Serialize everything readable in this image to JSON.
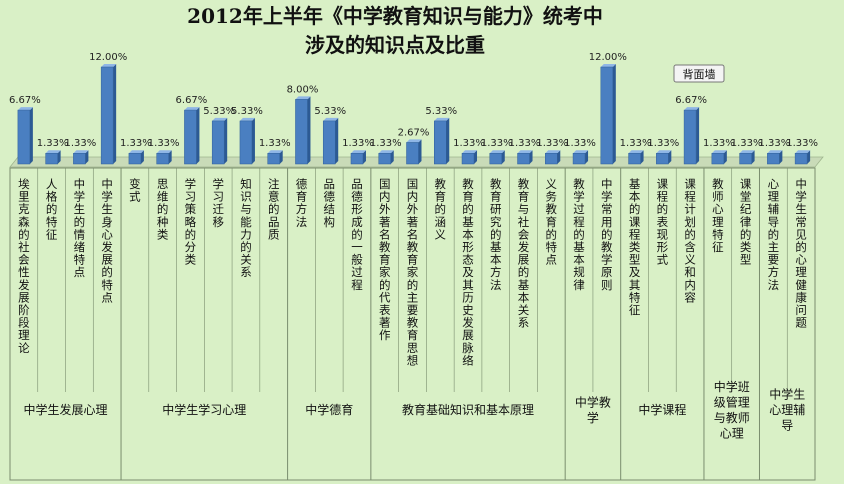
{
  "chart_data": {
    "type": "bar",
    "title_line1": "2012年上半年《中学教育知识与能力》统考中",
    "title_line2": "涉及的知识点及比重",
    "categories": [
      "埃里克森的社会性发展阶段理论",
      "人格的特征",
      "中学生的情绪特点",
      "中学生身心发展的特点",
      "变式",
      "思维的种类",
      "学习策略的分类",
      "学习迁移",
      "知识与能力的关系",
      "注意的品质",
      "德育方法",
      "品德结构",
      "品德形成的一般过程",
      "国内外著名教育家的代表著作",
      "国内外著名教育家的主要教育思想",
      "教育的涵义",
      "教育的基本形态及其历史发展脉络",
      "教育研究的基本方法",
      "教育与社会发展的基本关系",
      "义务教育的特点",
      "教学过程的基本规律",
      "中学常用的教学原则",
      "基本的课程类型及其特征",
      "课程的表现形式",
      "课程计划的含义和内容",
      "教师心理特征",
      "课堂纪律的类型",
      "心理辅导的主要方法",
      "中学生常见的心理健康问题"
    ],
    "values": [
      6.67,
      1.33,
      1.33,
      12.0,
      1.33,
      1.33,
      6.67,
      5.33,
      5.33,
      1.33,
      8.0,
      5.33,
      1.33,
      1.33,
      2.67,
      5.33,
      1.33,
      1.33,
      1.33,
      1.33,
      1.33,
      12.0,
      1.33,
      1.33,
      6.67,
      1.33,
      1.33,
      1.33,
      1.33
    ],
    "value_labels": [
      "6.67%",
      "1.33%",
      "1.33%",
      "12.00%",
      "1.33%",
      "1.33%",
      "6.67%",
      "5.33%",
      "5.33%",
      "1.33%",
      "8.00%",
      "5.33%",
      "1.33%",
      "1.33%",
      "2.67%",
      "5.33%",
      "1.33%",
      "1.33%",
      "1.33%",
      "1.33%",
      "1.33%",
      "12.00%",
      "1.33%",
      "1.33%",
      "6.67%",
      "1.33%",
      "1.33%",
      "1.33%",
      "1.33%"
    ],
    "groups": [
      {
        "lines": [
          "中学生发展心理"
        ],
        "start": 0,
        "count": 4
      },
      {
        "lines": [
          "中学生学习心理"
        ],
        "start": 4,
        "count": 6
      },
      {
        "lines": [
          "中学德育"
        ],
        "start": 10,
        "count": 3
      },
      {
        "lines": [
          "教育基础知识和基本原理"
        ],
        "start": 13,
        "count": 7
      },
      {
        "lines": [
          "中学教",
          "学"
        ],
        "start": 20,
        "count": 2
      },
      {
        "lines": [
          "中学课程"
        ],
        "start": 22,
        "count": 3
      },
      {
        "lines": [
          "中学班",
          "级管理",
          "与教师",
          "心理"
        ],
        "start": 25,
        "count": 2
      },
      {
        "lines": [
          "中学生",
          "心理辅",
          "导"
        ],
        "start": 27,
        "count": 2
      }
    ],
    "ylim": [
      0,
      12
    ],
    "grid": false,
    "legend": "none",
    "colors": {
      "bar": "#4a7fc1",
      "bar_dark": "#2c5a94",
      "bar_light": "#8fb6e6",
      "floor": "#c9dbb8",
      "background": "#d9f0c6"
    }
  },
  "callout": {
    "label": "背面墙"
  }
}
